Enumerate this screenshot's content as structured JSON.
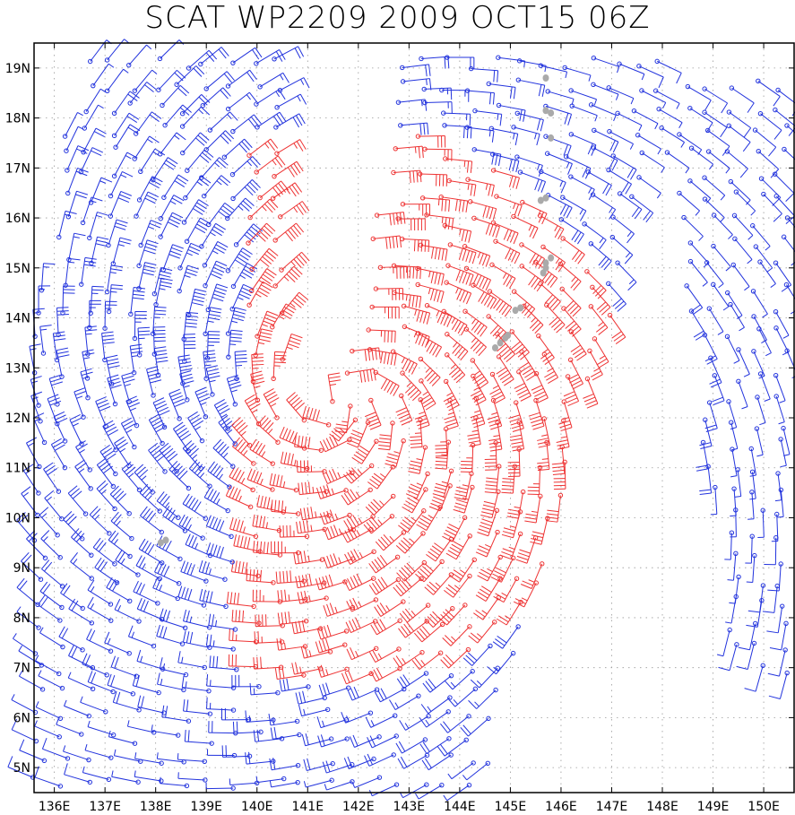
{
  "title": "SCAT WP2209 2009 OCT15 06Z",
  "map": {
    "lon_range": [
      135.6,
      150.6
    ],
    "lat_range": [
      4.5,
      19.5
    ],
    "lat_ticks": [
      {
        "value": 5,
        "label": "5N"
      },
      {
        "value": 6,
        "label": "6N"
      },
      {
        "value": 7,
        "label": "7N"
      },
      {
        "value": 8,
        "label": "8N"
      },
      {
        "value": 9,
        "label": "9N"
      },
      {
        "value": 10,
        "label": "10N"
      },
      {
        "value": 11,
        "label": "11N"
      },
      {
        "value": 12,
        "label": "12N"
      },
      {
        "value": 13,
        "label": "13N"
      },
      {
        "value": 14,
        "label": "14N"
      },
      {
        "value": 15,
        "label": "15N"
      },
      {
        "value": 16,
        "label": "16N"
      },
      {
        "value": 17,
        "label": "17N"
      },
      {
        "value": 18,
        "label": "18N"
      },
      {
        "value": 19,
        "label": "19N"
      }
    ],
    "lon_ticks": [
      {
        "value": 136,
        "label": "136E"
      },
      {
        "value": 137,
        "label": "137E"
      },
      {
        "value": 138,
        "label": "138E"
      },
      {
        "value": 139,
        "label": "139E"
      },
      {
        "value": 140,
        "label": "140E"
      },
      {
        "value": 141,
        "label": "141E"
      },
      {
        "value": 142,
        "label": "142E"
      },
      {
        "value": 143,
        "label": "143E"
      },
      {
        "value": 144,
        "label": "144E"
      },
      {
        "value": 145,
        "label": "145E"
      },
      {
        "value": 146,
        "label": "146E"
      },
      {
        "value": 147,
        "label": "147E"
      },
      {
        "value": 148,
        "label": "148E"
      },
      {
        "value": 149,
        "label": "149E"
      },
      {
        "value": 150,
        "label": "150E"
      }
    ],
    "grid": "dotted"
  },
  "wind_field": {
    "type": "scatterometer wind barbs",
    "cyclone_center": {
      "lon": 141.7,
      "lat": 12.3
    },
    "high_wind_color": "#ee3333",
    "low_wind_color": "#2233dd",
    "rain_flag_color": "#aaaaaa"
  },
  "rain_flags": [
    {
      "lon": 145.7,
      "lat": 18.8
    },
    {
      "lon": 145.8,
      "lat": 18.1
    },
    {
      "lon": 145.7,
      "lat": 18.15
    },
    {
      "lon": 145.8,
      "lat": 17.6
    },
    {
      "lon": 145.7,
      "lat": 16.4
    },
    {
      "lon": 145.6,
      "lat": 16.35
    },
    {
      "lon": 145.8,
      "lat": 15.2
    },
    {
      "lon": 145.7,
      "lat": 15.0
    },
    {
      "lon": 145.65,
      "lat": 14.9
    },
    {
      "lon": 145.7,
      "lat": 15.1
    },
    {
      "lon": 145.2,
      "lat": 14.2
    },
    {
      "lon": 145.1,
      "lat": 14.15
    },
    {
      "lon": 144.9,
      "lat": 13.6
    },
    {
      "lon": 144.8,
      "lat": 13.5
    },
    {
      "lon": 144.7,
      "lat": 13.4
    },
    {
      "lon": 144.95,
      "lat": 13.65
    },
    {
      "lon": 138.1,
      "lat": 9.5
    },
    {
      "lon": 138.2,
      "lat": 9.55
    }
  ]
}
